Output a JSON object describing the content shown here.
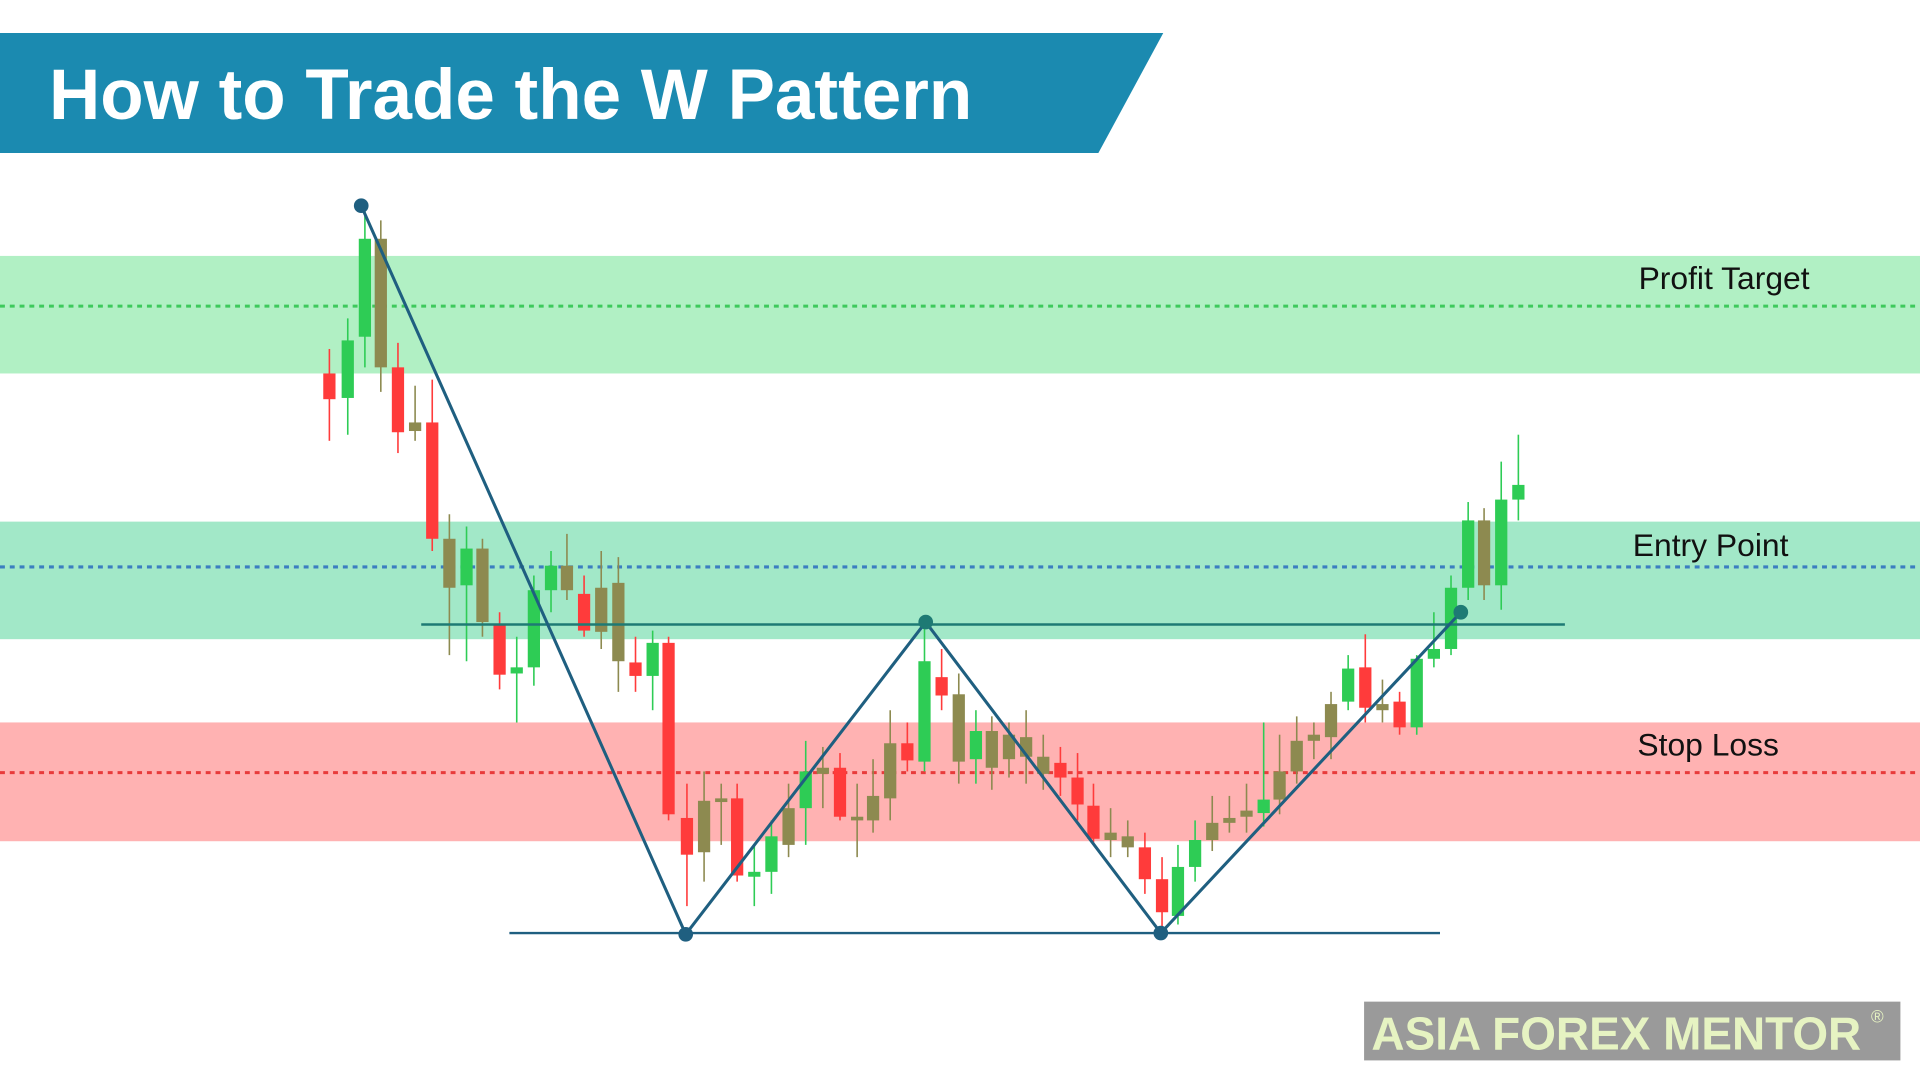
{
  "header": {
    "title": "How to Trade the W Pattern"
  },
  "levels": [
    {
      "label": "Profit Target"
    },
    {
      "label": "Entry Point"
    },
    {
      "label": "Stop Loss"
    }
  ],
  "logo": {
    "text": "ASIA FOREX MENTOR",
    "mark": "®"
  }
}
